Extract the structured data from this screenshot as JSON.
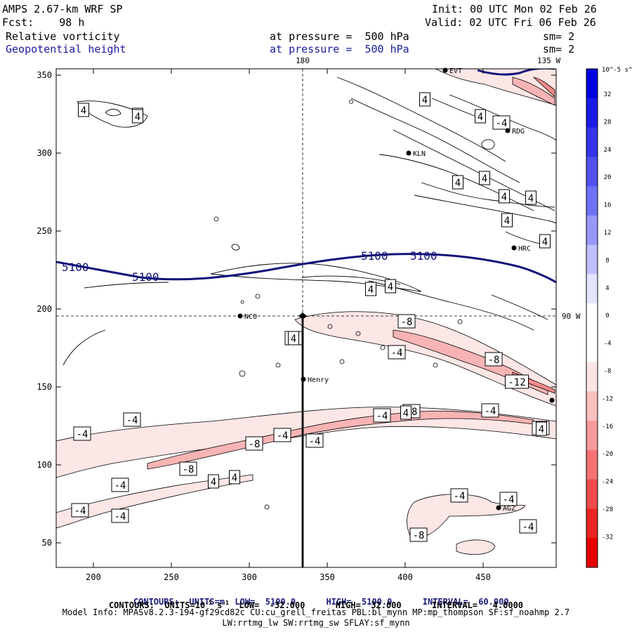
{
  "header": {
    "model": "AMPS 2.67-km WRF SP",
    "forecast": "Fcst:    98 h",
    "init": "Init: 00 UTC Mon 02 Feb 26",
    "valid": "Valid: 02 UTC Fri 06 Feb 26",
    "field1": "Relative vorticity",
    "field1_level": "at pressure =  500 hPa",
    "field1_sm": "sm= 2",
    "field2": "Geopotential height",
    "field2_level": "at pressure =  500 hPa",
    "field2_sm": "sm= 2"
  },
  "map": {
    "lon_180": "180",
    "lon_135w": "135 W",
    "lat_90w": "90 W",
    "x_ticks": [
      "200",
      "250",
      "300",
      "350",
      "400",
      "450"
    ],
    "y_ticks": [
      "350",
      "300",
      "250",
      "200",
      "150",
      "100",
      "50"
    ],
    "stations": [
      "EVT",
      "RDG",
      "KLN",
      "HRC",
      "NCO",
      "Henry",
      "AGZ",
      ""
    ],
    "height_labels": [
      "5100",
      "5100",
      "5100",
      "5100"
    ],
    "contour_labels": [
      "4",
      "4",
      "4",
      "4",
      "4",
      "4",
      "4",
      "4",
      "4",
      "4",
      "4",
      "4",
      "4",
      "4",
      "4",
      "-4",
      "-4",
      "-8",
      "-4",
      "-8",
      "-12",
      "-4",
      "-4",
      "-4",
      "-4",
      "-8",
      "-8",
      "-8",
      "-4",
      "-8",
      "-4",
      "-4",
      "-4",
      "-4",
      "-4",
      "-4",
      "-4",
      "-8",
      "4",
      "4",
      "4"
    ]
  },
  "colorbar": {
    "unit": "10^-5 s^-1",
    "labels": [
      "32",
      "28",
      "24",
      "20",
      "16",
      "12",
      "8",
      "4",
      "0",
      "-4",
      "-8",
      "-12",
      "-16",
      "-20",
      "-24",
      "-28",
      "-32"
    ],
    "colors": [
      "#0000e0",
      "#1a1ae8",
      "#3434ee",
      "#5050f2",
      "#7070f6",
      "#9898fa",
      "#c0c0fd",
      "#e4e4ff",
      "#ffffff",
      "#ffffff",
      "#fde4e4",
      "#fbc0c0",
      "#f89a9a",
      "#f47272",
      "#f04a4a",
      "#ec2424",
      "#e80000"
    ]
  },
  "footer": {
    "line1_a": "CONTOURS:  UNITS=m  LOW=  5100.0",
    "line1_b": "HIGH=  5100.0",
    "line1_c": "INTERVAL=  60.000",
    "line2_a": "CONTOURS:  UNITS=10",
    "line2_sup": "-5",
    "line2_b": " s",
    "line2_sup2": "-1",
    "line2_c": "  LOW=  -32.000",
    "line2_d": "HIGH=  32.000",
    "line2_e": "INTERVAL=   4.0000",
    "model_info": "Model Info: MPASv8.2.3-194-gf29cd82c CU:cu_grell_freitas PBL:bl_mynn MP:mp_thompson SF:sf_noahmp 2.7",
    "physics": "LW:rrtmg_lw SW:rrtmg_sw SFLAY:sf_mynn"
  }
}
